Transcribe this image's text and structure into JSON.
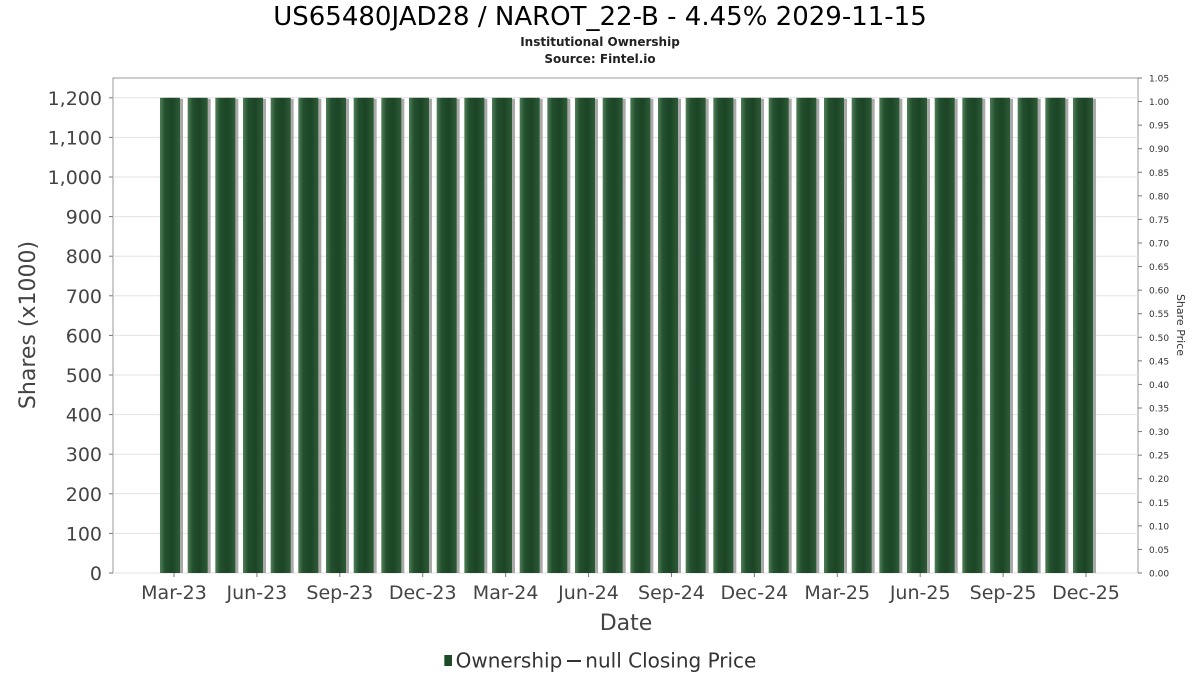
{
  "chart_data": {
    "type": "bar",
    "title": "US65480JAD28 / NAROT_22-B - 4.45% 2029-11-15",
    "subtitle_lines": [
      "Institutional Ownership",
      "Source: Fintel.io"
    ],
    "xlabel": "Date",
    "ylabel": "Shares (x1000)",
    "y2label": "Share Price",
    "ylim": [
      0,
      1250
    ],
    "y2lim": [
      0,
      1.05
    ],
    "yticks": [
      0,
      100,
      200,
      300,
      400,
      500,
      600,
      700,
      800,
      900,
      1000,
      1100,
      1200
    ],
    "ytick_labels": [
      "0",
      "100",
      "200",
      "300",
      "400",
      "500",
      "600",
      "700",
      "800",
      "900",
      "1,000",
      "1,100",
      "1,200"
    ],
    "y2ticks": [
      "0.00",
      "0.05",
      "0.10",
      "0.15",
      "0.20",
      "0.25",
      "0.30",
      "0.35",
      "0.40",
      "0.45",
      "0.50",
      "0.55",
      "0.60",
      "0.65",
      "0.70",
      "0.75",
      "0.80",
      "0.85",
      "0.90",
      "0.95",
      "1.00",
      "1.05"
    ],
    "xtick_labels": [
      "Mar-23",
      "Jun-23",
      "Sep-23",
      "Dec-23",
      "Mar-24",
      "Jun-24",
      "Sep-24",
      "Dec-24",
      "Mar-25",
      "Jun-25",
      "Sep-25",
      "Dec-25"
    ],
    "series": [
      {
        "name": "Ownership",
        "color": "#1e4a2a",
        "values": [
          1200,
          1200,
          1200,
          1200,
          1200,
          1200,
          1200,
          1200,
          1200,
          1200,
          1200,
          1200,
          1200,
          1200,
          1200,
          1200,
          1200,
          1200,
          1200,
          1200,
          1200,
          1200,
          1200,
          1200,
          1200,
          1200,
          1200,
          1200,
          1200,
          1200,
          1200,
          1200,
          1200,
          1200
        ]
      }
    ],
    "legend": [
      "Ownership",
      "null Closing Price"
    ],
    "legend_position": "bottom",
    "grid": true
  }
}
